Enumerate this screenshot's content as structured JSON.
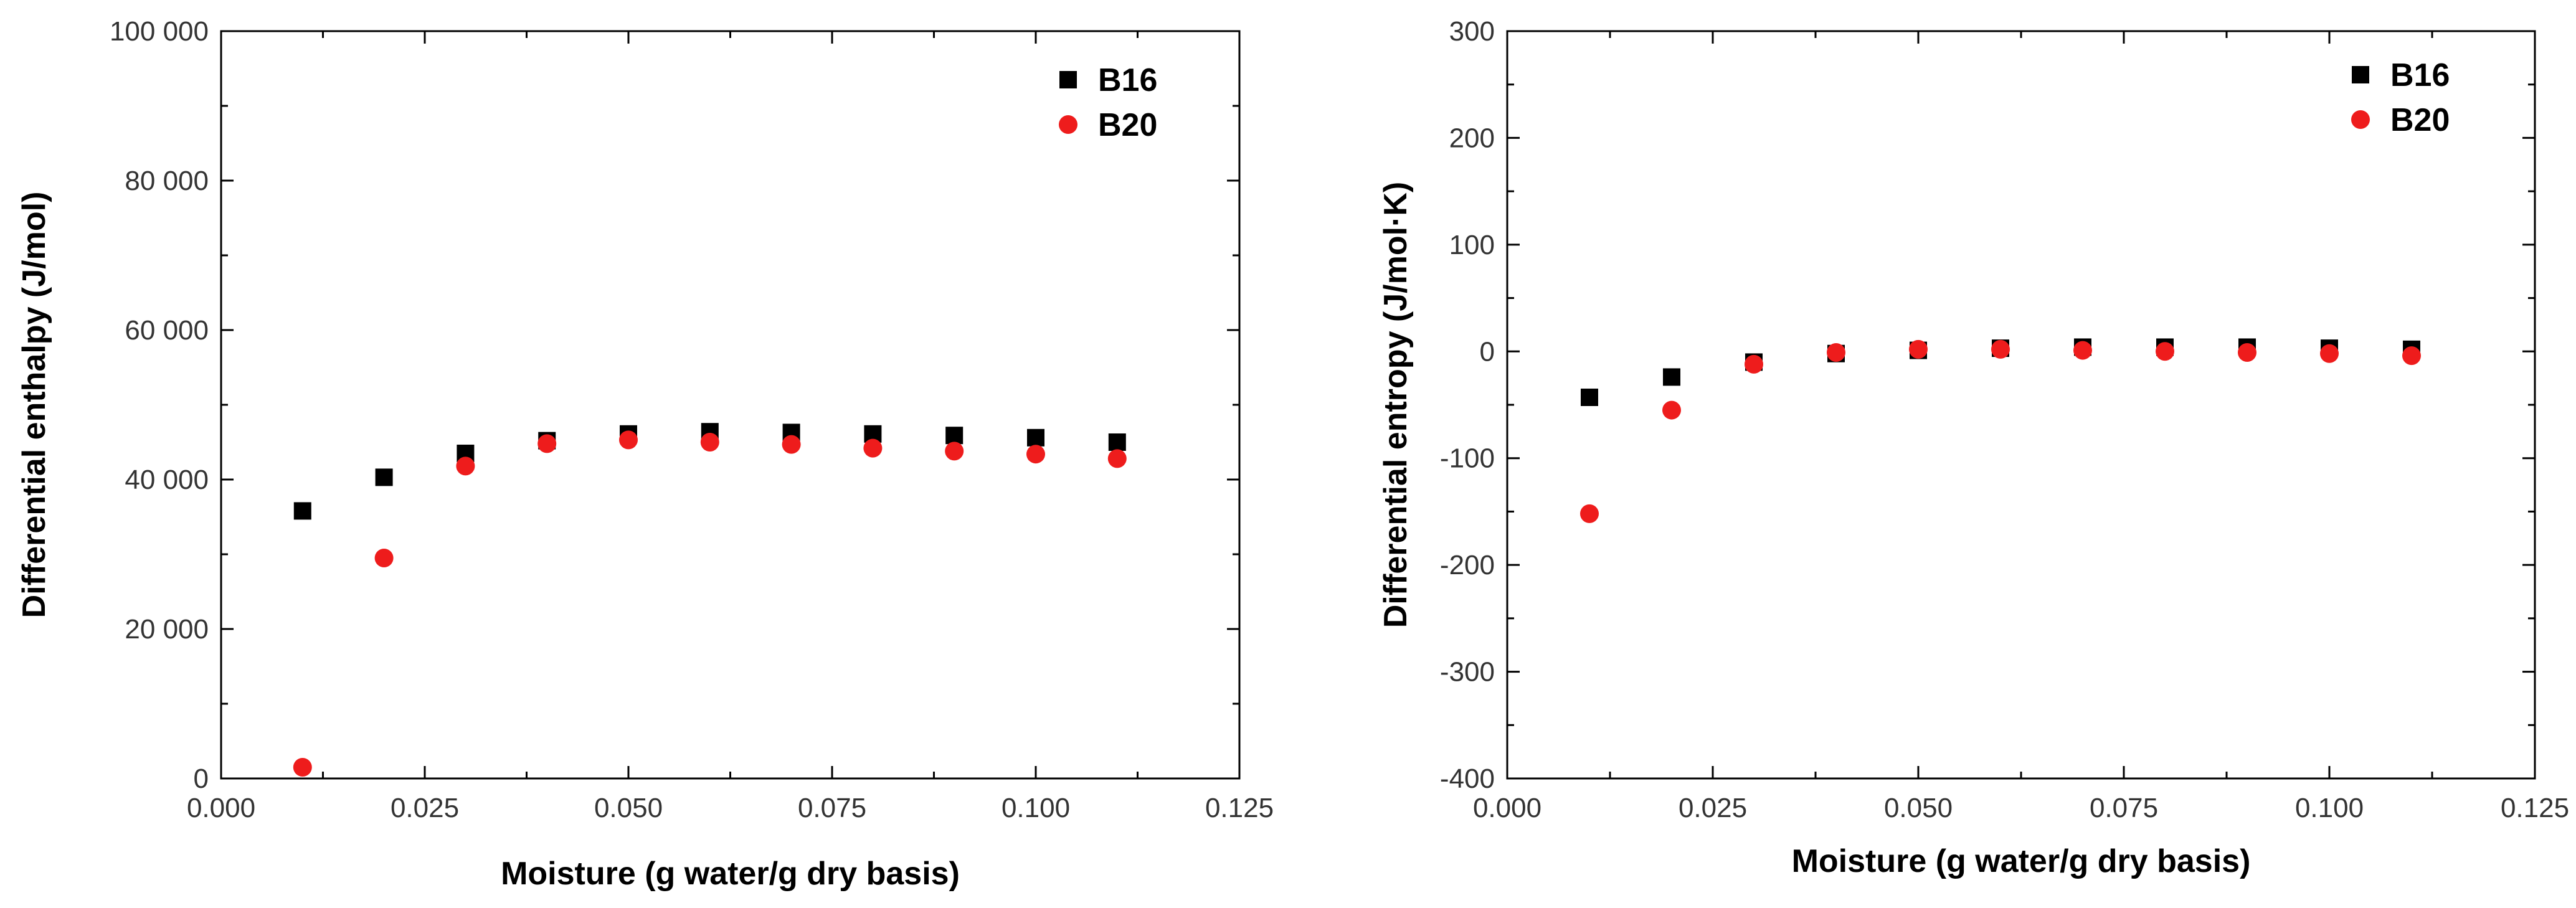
{
  "chart_data": [
    {
      "type": "scatter",
      "title": "",
      "xlabel": "Moisture (g water/g dry basis)",
      "ylabel": "Differential enthalpy (J/mol)",
      "xlim": [
        0.0,
        0.125
      ],
      "ylim": [
        0,
        100000
      ],
      "x_ticks": [
        0.0,
        0.025,
        0.05,
        0.075,
        0.1,
        0.125
      ],
      "x_tick_labels": [
        "0.000",
        "0.025",
        "0.050",
        "0.075",
        "0.100",
        "0.125"
      ],
      "y_ticks": [
        0,
        20000,
        40000,
        60000,
        80000,
        100000
      ],
      "y_tick_labels": [
        "0",
        "20 000",
        "40 000",
        "60 000",
        "80 000",
        "100 000"
      ],
      "legend_position": "top-right",
      "series": [
        {
          "name": "B16",
          "marker": "square",
          "color": "#000000",
          "x": [
            0.01,
            0.02,
            0.03,
            0.04,
            0.05,
            0.06,
            0.07,
            0.08,
            0.09,
            0.1,
            0.11
          ],
          "values": [
            35800,
            40300,
            43500,
            45200,
            46100,
            46400,
            46300,
            46100,
            45900,
            45600,
            45000
          ]
        },
        {
          "name": "B20",
          "marker": "circle",
          "color": "#ee1c1c",
          "x": [
            0.01,
            0.02,
            0.03,
            0.04,
            0.05,
            0.06,
            0.07,
            0.08,
            0.09,
            0.1,
            0.11
          ],
          "values": [
            1500,
            29500,
            41800,
            44800,
            45300,
            45000,
            44700,
            44200,
            43800,
            43400,
            42800
          ]
        }
      ]
    },
    {
      "type": "scatter",
      "title": "",
      "xlabel": "Moisture (g water/g dry basis)",
      "ylabel": "Differential entropy (J/mol·K)",
      "xlim": [
        0.0,
        0.125
      ],
      "ylim": [
        -400,
        300
      ],
      "x_ticks": [
        0.0,
        0.025,
        0.05,
        0.075,
        0.1,
        0.125
      ],
      "x_tick_labels": [
        "0.000",
        "0.025",
        "0.050",
        "0.075",
        "0.100",
        "0.125"
      ],
      "y_ticks": [
        -400,
        -300,
        -200,
        -100,
        0,
        100,
        200,
        300
      ],
      "y_tick_labels": [
        "-400",
        "-300",
        "-200",
        "-100",
        "0",
        "100",
        "200",
        "300"
      ],
      "legend_position": "top-right",
      "series": [
        {
          "name": "B16",
          "marker": "square",
          "color": "#000000",
          "x": [
            0.01,
            0.02,
            0.03,
            0.04,
            0.05,
            0.06,
            0.07,
            0.08,
            0.09,
            0.1,
            0.11
          ],
          "values": [
            -43,
            -24,
            -10,
            -2,
            1,
            3,
            4,
            4,
            4,
            3,
            2
          ]
        },
        {
          "name": "B20",
          "marker": "circle",
          "color": "#ee1c1c",
          "x": [
            0.01,
            0.02,
            0.03,
            0.04,
            0.05,
            0.06,
            0.07,
            0.08,
            0.09,
            0.1,
            0.11
          ],
          "values": [
            -152,
            -55,
            -12,
            -1,
            2,
            2,
            1,
            0,
            -1,
            -2,
            -4
          ]
        }
      ]
    }
  ]
}
